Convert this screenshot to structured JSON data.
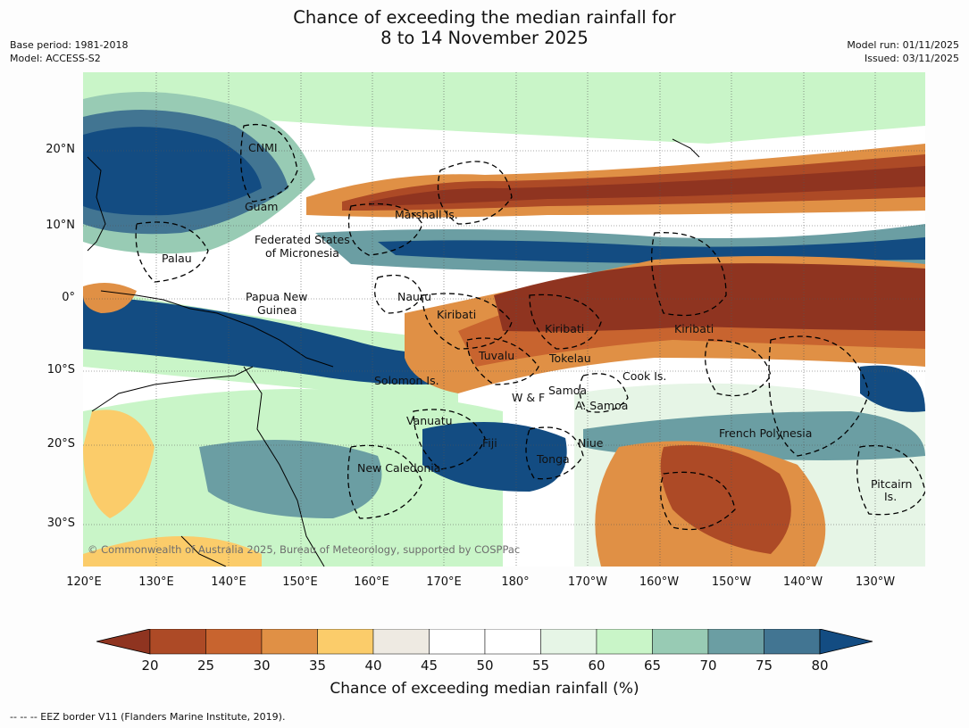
{
  "title": {
    "line1": "Chance of exceeding the median rainfall for",
    "line2": "8 to 14 November 2025"
  },
  "meta_left": {
    "base_period": "Base period: 1981-2018",
    "model": "Model: ACCESS-S2"
  },
  "meta_right": {
    "model_run": "Model run: 01/11/2025",
    "issued": "Issued: 03/11/2025"
  },
  "map": {
    "copyright": "© Commonwealth of Australia 2025, Bureau of Meteorology, supported by COSPPac",
    "places": [
      "CNMI",
      "Guam",
      "Marshall Is.",
      "Federated States",
      "of Micronesia",
      "Palau",
      "Nauru",
      "Papua New",
      "Guinea",
      "Kiribati",
      "Kiribati",
      "Kiribati",
      "Tuvalu",
      "Tokelau",
      "Cook Is.",
      "Solomon Is.",
      "Samoa",
      "W & F",
      "A. Samoa",
      "Vanuatu",
      "Fiji",
      "Niue",
      "French Polynesia",
      "Tonga",
      "New Caledonia",
      "Pitcairn",
      "Is."
    ],
    "lat_labels": [
      "20°N",
      "10°N",
      "0°",
      "10°S",
      "20°S",
      "30°S"
    ],
    "lon_labels": [
      "120°E",
      "130°E",
      "140°E",
      "150°E",
      "160°E",
      "170°E",
      "180°",
      "170°W",
      "160°W",
      "150°W",
      "140°W",
      "130°W"
    ]
  },
  "colorbar": {
    "title": "Chance of exceeding median rainfall (%)",
    "ticks": [
      "20",
      "25",
      "30",
      "35",
      "40",
      "45",
      "50",
      "55",
      "60",
      "65",
      "70",
      "75",
      "80"
    ],
    "colors": {
      "lt20": "#8f3420",
      "b20": "#ad4a26",
      "b25": "#c8642f",
      "b30": "#e09045",
      "b35": "#fbcc6a",
      "b40": "#eeeae2",
      "b45": "#ffffff",
      "b50": "#ffffff",
      "b55": "#e6f5e6",
      "b60": "#c9f5c8",
      "b65": "#98cbb4",
      "b70": "#6b9ea3",
      "b75": "#427592",
      "gt80": "#134c82"
    }
  },
  "footer": "--  --  -- EEZ border V11 (Flanders Marine Institute, 2019)."
}
